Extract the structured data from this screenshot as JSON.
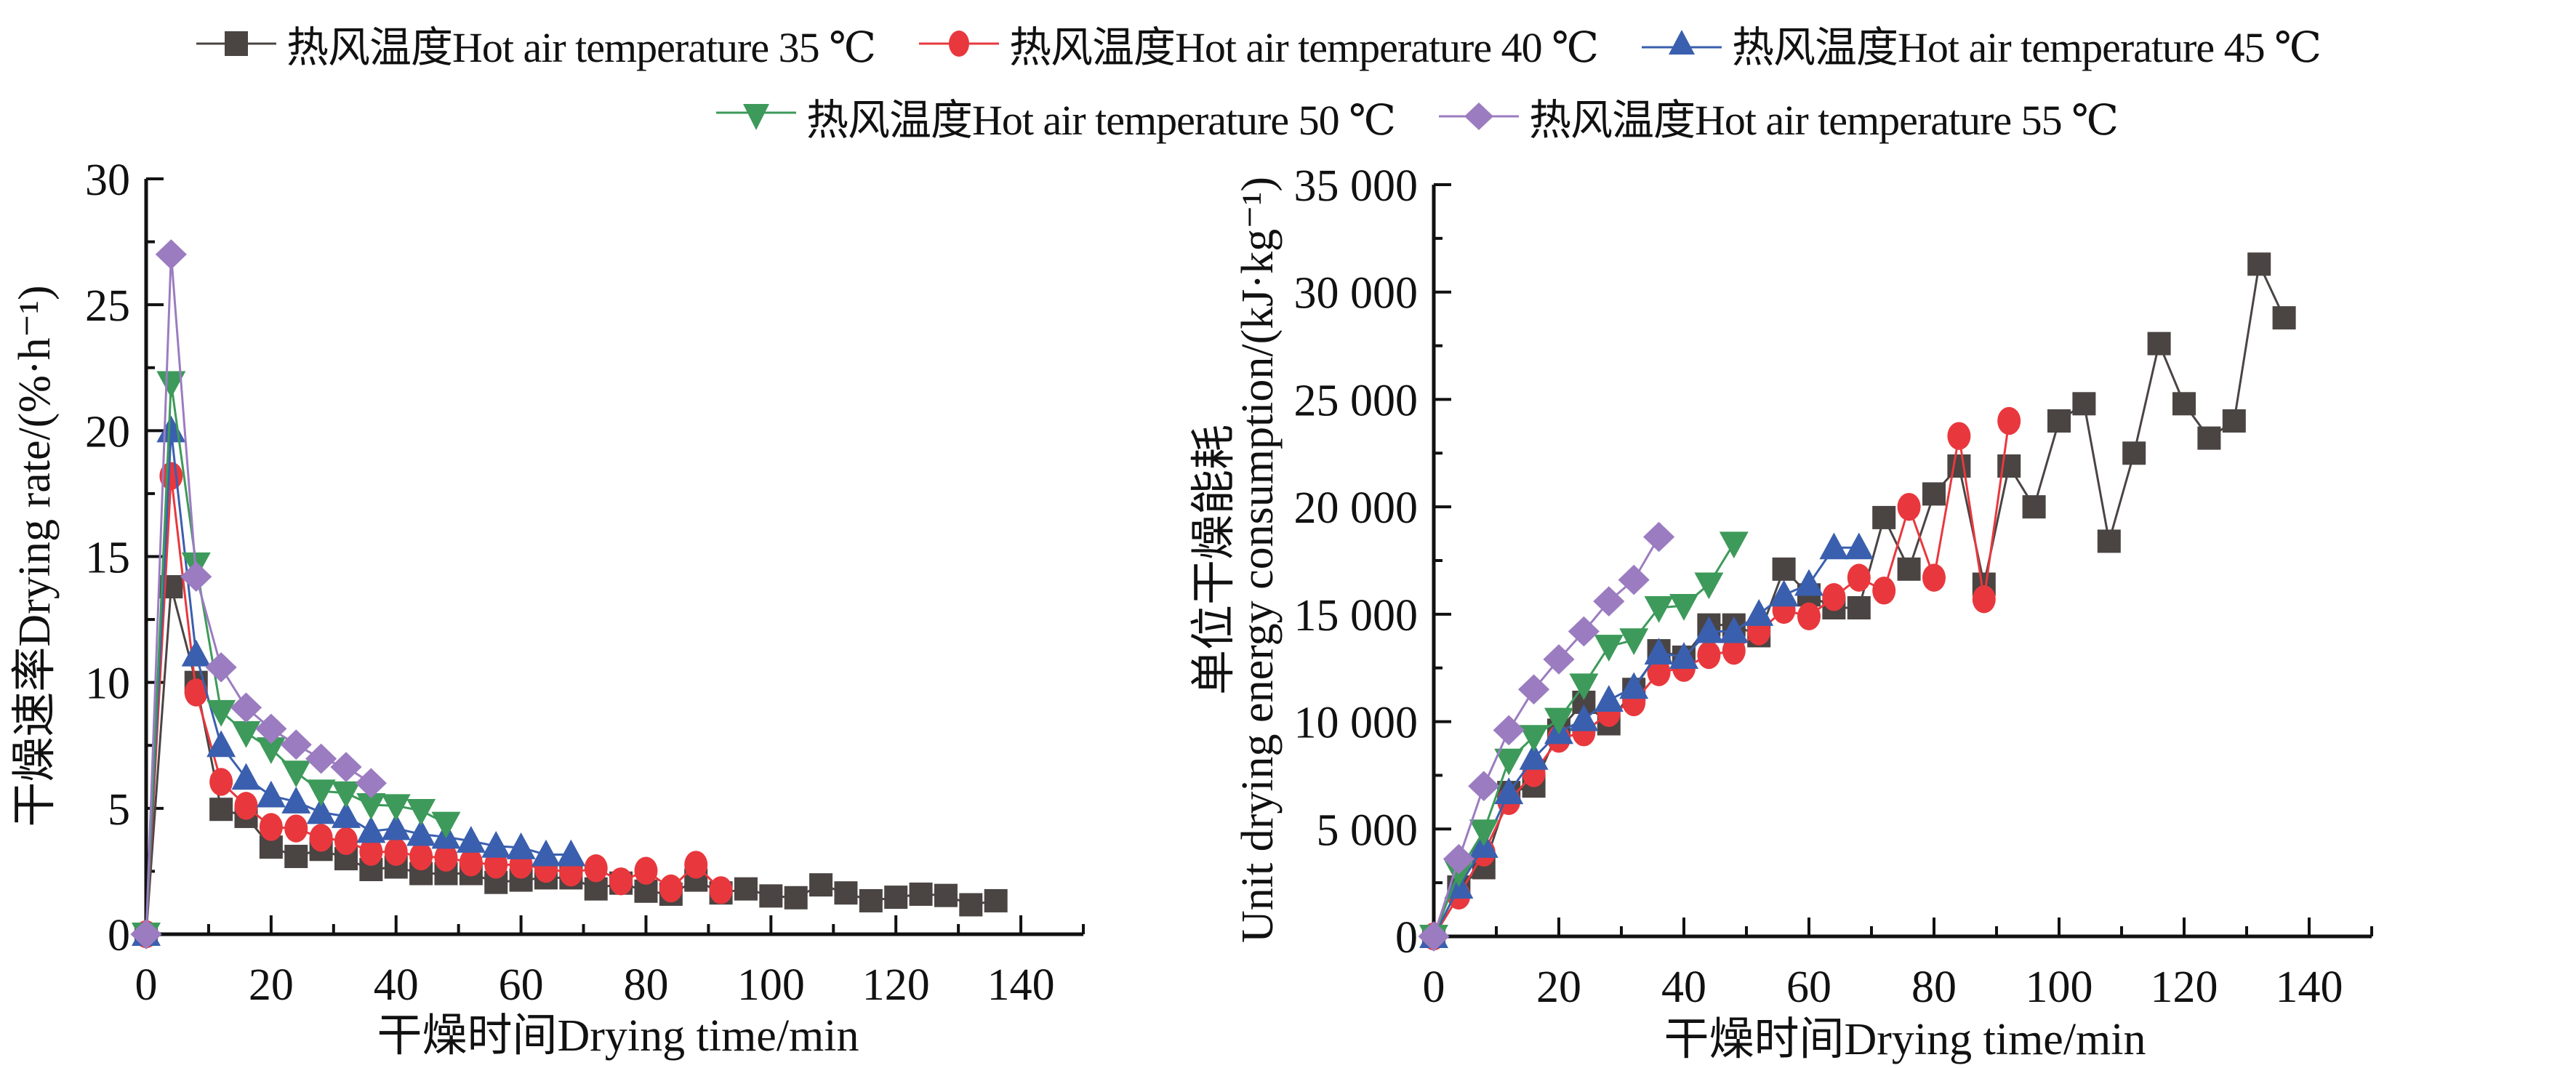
{
  "legend": [
    {
      "key": "t35",
      "label": "热风温度Hot air temperature 35 ℃",
      "marker": "square",
      "color": "#4a4443"
    },
    {
      "key": "t40",
      "label": "热风温度Hot air temperature 40 ℃",
      "marker": "circle",
      "color": "#e8383d"
    },
    {
      "key": "t45",
      "label": "热风温度Hot air temperature 45 ℃",
      "marker": "triangle-up",
      "color": "#3a5fae"
    },
    {
      "key": "t50",
      "label": "热风温度Hot air temperature 50 ℃",
      "marker": "triangle-down",
      "color": "#3d9a5a"
    },
    {
      "key": "t55",
      "label": "热风温度Hot air temperature 55 ℃",
      "marker": "diamond",
      "color": "#9b7cc0"
    }
  ],
  "chart_data": [
    {
      "type": "line",
      "title": "",
      "xlabel": "干燥时间Drying time/min",
      "ylabel": "干燥速率Drying rate/(%·h⁻¹)",
      "xlim": [
        0,
        150
      ],
      "ylim": [
        0,
        30
      ],
      "xticks": [
        0,
        20,
        40,
        60,
        80,
        100,
        120,
        140
      ],
      "xtick_labels": [
        "0",
        "20",
        "40",
        "60",
        "80",
        "100",
        "120",
        "140"
      ],
      "yticks": [
        0,
        5,
        10,
        15,
        20,
        25,
        30
      ],
      "ytick_labels": [
        "0",
        "5",
        "10",
        "15",
        "20",
        "25",
        "30"
      ],
      "grid": false,
      "legend_position": "top",
      "series": [
        {
          "name": "热风温度Hot air temperature 35 ℃",
          "x": [
            0,
            4,
            8,
            12,
            16,
            20,
            24,
            28,
            32,
            36,
            40,
            44,
            48,
            52,
            56,
            60,
            64,
            68,
            72,
            76,
            80,
            84,
            88,
            92,
            96,
            100,
            104,
            108,
            112,
            116,
            120,
            124,
            128,
            132,
            136
          ],
          "y": [
            0,
            13.8,
            10.0,
            4.96,
            4.68,
            3.46,
            3.09,
            3.37,
            3.0,
            2.57,
            2.67,
            2.41,
            2.41,
            2.41,
            2.06,
            2.15,
            2.24,
            2.24,
            1.8,
            2.03,
            1.71,
            1.59,
            2.15,
            1.64,
            1.8,
            1.52,
            1.45,
            1.96,
            1.64,
            1.33,
            1.47,
            1.59,
            1.54,
            1.17,
            1.33
          ]
        },
        {
          "name": "热风温度Hot air temperature 40 ℃",
          "x": [
            0,
            4,
            8,
            12,
            16,
            20,
            24,
            28,
            32,
            36,
            40,
            44,
            48,
            52,
            56,
            60,
            64,
            68,
            72,
            76,
            80,
            84,
            88,
            92
          ],
          "y": [
            0,
            18.2,
            9.6,
            6.05,
            5.1,
            4.26,
            4.2,
            3.83,
            3.7,
            3.27,
            3.27,
            3.09,
            3.04,
            2.85,
            2.76,
            2.76,
            2.6,
            2.45,
            2.62,
            2.1,
            2.52,
            1.82,
            2.76,
            1.75
          ]
        },
        {
          "name": "热风温度Hot air temperature 45 ℃",
          "x": [
            0,
            4,
            8,
            12,
            16,
            20,
            24,
            28,
            32,
            36,
            40,
            44,
            48,
            52,
            56,
            60,
            64,
            68
          ],
          "y": [
            0,
            20.0,
            11.1,
            7.5,
            6.2,
            5.5,
            5.26,
            4.84,
            4.68,
            4.09,
            4.2,
            3.97,
            3.86,
            3.7,
            3.5,
            3.44,
            3.16,
            3.16
          ]
        },
        {
          "name": "热风温度Hot air temperature 50 ℃",
          "x": [
            0,
            4,
            8,
            12,
            16,
            20,
            24,
            28,
            32,
            36,
            40,
            44,
            48
          ],
          "y": [
            0,
            21.9,
            14.7,
            8.84,
            8.0,
            7.36,
            6.43,
            5.68,
            5.61,
            5.14,
            5.1,
            4.91,
            4.4
          ]
        },
        {
          "name": "热风温度Hot air temperature 55 ℃",
          "x": [
            0,
            4,
            8,
            12,
            16,
            20,
            24,
            28,
            32,
            36
          ],
          "y": [
            0,
            27.0,
            14.2,
            10.6,
            9.0,
            8.16,
            7.53,
            6.97,
            6.64,
            6.0
          ]
        }
      ]
    },
    {
      "type": "line",
      "title": "",
      "xlabel": "干燥时间Drying time/min",
      "ylabel_line1": "单位干燥能耗",
      "ylabel_line2": "Unit drying energy consumption/(kJ·kg⁻¹)",
      "xlim": [
        0,
        150
      ],
      "ylim": [
        0,
        35000
      ],
      "xticks": [
        0,
        20,
        40,
        60,
        80,
        100,
        120,
        140
      ],
      "xtick_labels": [
        "0",
        "20",
        "40",
        "60",
        "80",
        "100",
        "120",
        "140"
      ],
      "yticks": [
        0,
        5000,
        10000,
        15000,
        20000,
        25000,
        30000,
        35000
      ],
      "ytick_labels": [
        "0",
        "5 000",
        "10 000",
        "15 000",
        "20 000",
        "25 000",
        "30 000",
        "35 000"
      ],
      "grid": false,
      "legend_position": "top",
      "series": [
        {
          "name": "热风温度Hot air temperature 35 ℃",
          "x": [
            0,
            4,
            8,
            12,
            16,
            20,
            24,
            28,
            32,
            36,
            40,
            44,
            48,
            52,
            56,
            60,
            64,
            68,
            72,
            76,
            80,
            84,
            88,
            92,
            96,
            100,
            104,
            108,
            112,
            116,
            120,
            124,
            128,
            132,
            136
          ],
          "y": [
            0,
            2300,
            3200,
            6700,
            7000,
            9600,
            10900,
            9900,
            11500,
            13300,
            13000,
            14500,
            14500,
            14000,
            17100,
            15900,
            15300,
            15300,
            19500,
            17100,
            20600,
            21900,
            16400,
            21900,
            20000,
            24000,
            24800,
            18400,
            22500,
            27600,
            24800,
            23200,
            24000,
            31300,
            28800
          ]
        },
        {
          "name": "热风温度Hot air temperature 40 ℃",
          "x": [
            0,
            4,
            8,
            12,
            16,
            20,
            24,
            28,
            32,
            36,
            40,
            44,
            48,
            52,
            56,
            60,
            64,
            68,
            72,
            76,
            80,
            84,
            88,
            92
          ],
          "y": [
            0,
            1900,
            3900,
            6300,
            7600,
            9200,
            9500,
            10400,
            10900,
            12300,
            12500,
            13100,
            13300,
            14200,
            15200,
            14900,
            15800,
            16700,
            16100,
            20000,
            16700,
            23300,
            15700,
            24000
          ]
        },
        {
          "name": "热风温度Hot air temperature 45 ℃",
          "x": [
            0,
            4,
            8,
            12,
            16,
            20,
            24,
            28,
            32,
            36,
            40,
            44,
            48,
            52,
            56,
            60,
            64,
            68
          ],
          "y": [
            0,
            2300,
            4200,
            6700,
            8300,
            9500,
            10100,
            11000,
            11600,
            13200,
            13000,
            14200,
            14200,
            15000,
            15900,
            16400,
            18100,
            18100
          ]
        },
        {
          "name": "热风温度Hot air temperature 50 ℃",
          "x": [
            0,
            4,
            8,
            12,
            16,
            20,
            24,
            28,
            32,
            36,
            40,
            44,
            48
          ],
          "y": [
            0,
            3000,
            4900,
            8200,
            9300,
            10100,
            11700,
            13500,
            13800,
            15300,
            15400,
            16400,
            18300
          ]
        },
        {
          "name": "热风温度Hot air temperature 55 ℃",
          "x": [
            0,
            4,
            8,
            12,
            16,
            20,
            24,
            28,
            32,
            36
          ],
          "y": [
            0,
            3600,
            7000,
            9600,
            11500,
            12900,
            14200,
            15600,
            16600,
            18600
          ]
        }
      ]
    }
  ]
}
